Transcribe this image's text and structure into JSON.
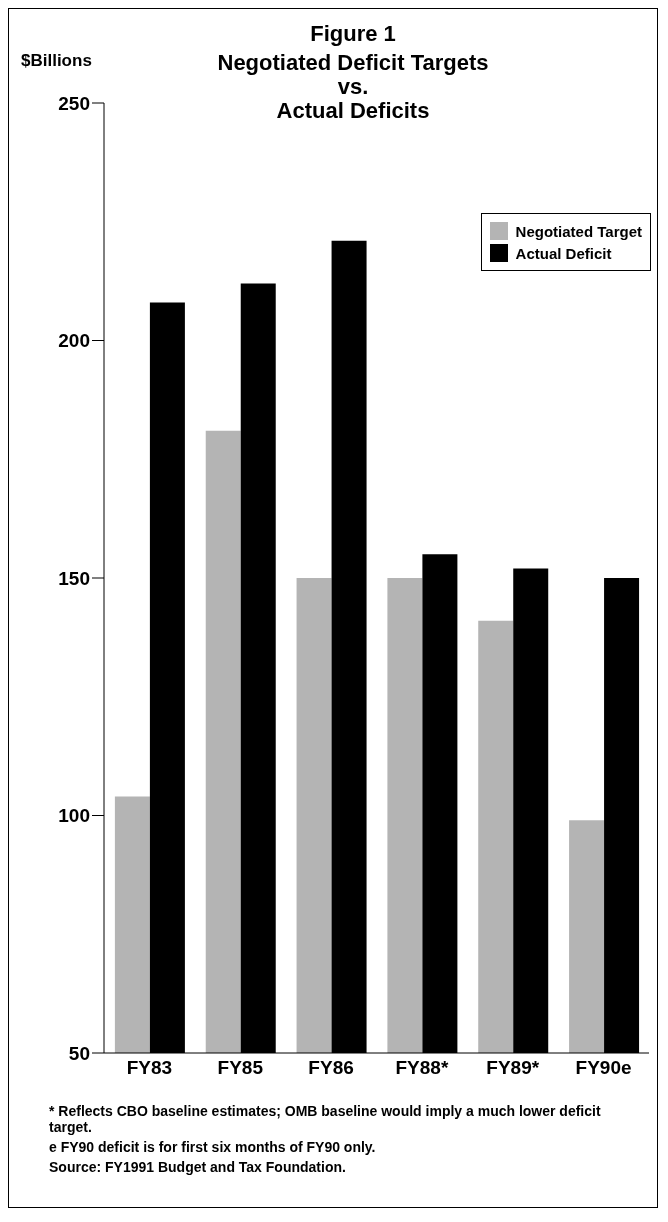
{
  "chart_data": {
    "type": "bar",
    "title": "Figure 1",
    "subtitle": "Negotiated Deficit Targets\nvs.\nActual Deficits",
    "ylabel": "$Billions",
    "categories": [
      "FY83",
      "FY85",
      "FY86",
      "FY88*",
      "FY89*",
      "FY90e"
    ],
    "series": [
      {
        "name": "Negotiated Target",
        "color": "#b4b4b4",
        "values": [
          104,
          181,
          150,
          150,
          141,
          99
        ]
      },
      {
        "name": "Actual Deficit",
        "color": "#000000",
        "values": [
          208,
          212,
          221,
          155,
          152,
          150
        ]
      }
    ],
    "ylim": [
      50,
      250
    ],
    "yticks": [
      50,
      100,
      150,
      200,
      250
    ],
    "grid": false,
    "legend": "top right",
    "annotations": [
      "*  Reflects CBO baseline estimates; OMB baseline would imply a much lower deficit target.",
      "e FY90 deficit is for first six months of FY90 only.",
      "Source: FY1991 Budget and Tax Foundation."
    ]
  }
}
